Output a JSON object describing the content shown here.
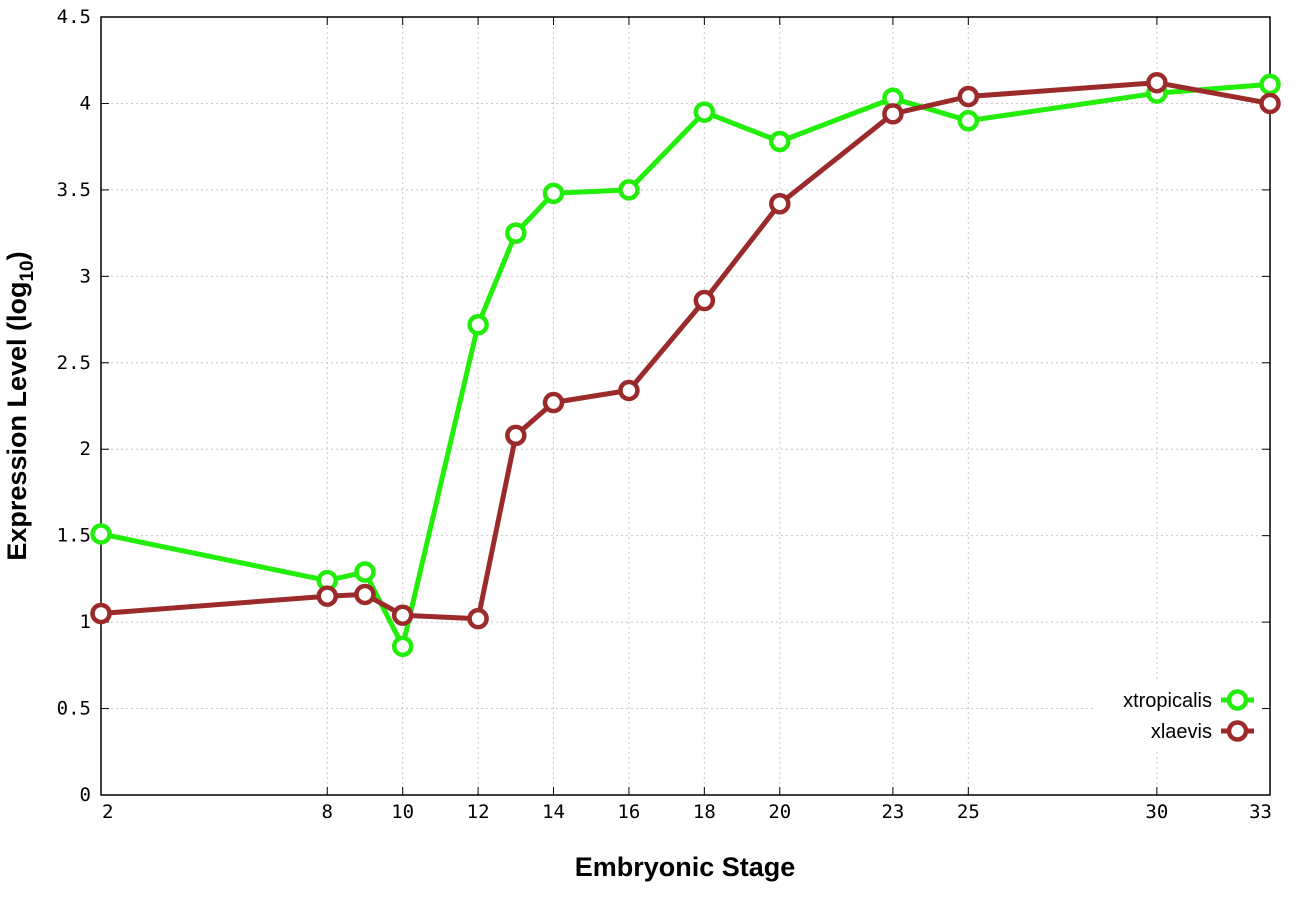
{
  "chart_data": {
    "type": "line",
    "xlabel": "Embryonic Stage",
    "ylabel": "Expression Level (log",
    "ylabel_sub": "10",
    "ylabel_close": ")",
    "x": [
      2,
      8,
      9,
      10,
      12,
      13,
      14,
      16,
      18,
      20,
      23,
      25,
      30,
      33
    ],
    "x_ticks": [
      2,
      8,
      10,
      12,
      14,
      16,
      18,
      20,
      23,
      25,
      30,
      33
    ],
    "y_ticks": [
      "0",
      "0.5",
      "1",
      "1.5",
      "2",
      "2.5",
      "3",
      "3.5",
      "4",
      "4.5"
    ],
    "xlim": [
      2,
      33
    ],
    "ylim": [
      0,
      4.5
    ],
    "grid": true,
    "legend_position": "bottom-right",
    "series": [
      {
        "name": "xtropicalis",
        "color": "#22ee0a",
        "values": [
          1.51,
          1.24,
          1.29,
          0.86,
          2.72,
          3.25,
          3.48,
          3.5,
          3.95,
          3.78,
          4.03,
          3.9,
          4.06,
          4.11
        ]
      },
      {
        "name": "xlaevis",
        "color": "#9b2a2a",
        "values": [
          1.05,
          1.15,
          1.16,
          1.04,
          1.02,
          2.08,
          2.27,
          2.34,
          2.86,
          3.42,
          3.94,
          4.04,
          4.12,
          4.0
        ]
      }
    ]
  }
}
